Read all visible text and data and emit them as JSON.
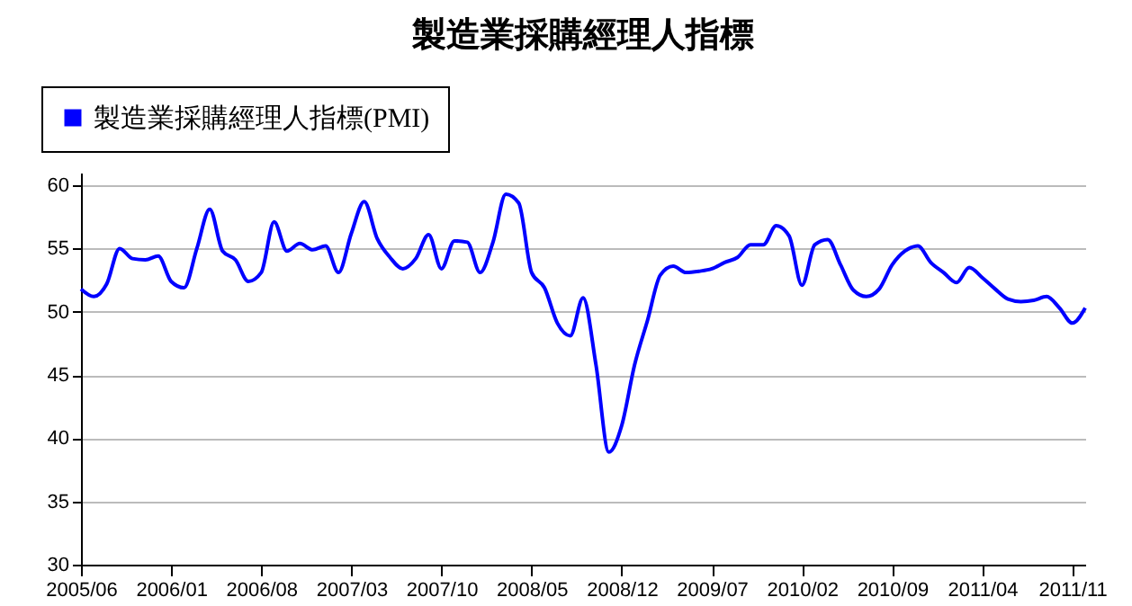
{
  "chart_data": {
    "type": "line",
    "title": "製造業採購經理人指標",
    "categories": [
      "2005/06",
      null,
      null,
      null,
      null,
      null,
      null,
      "2006/01",
      null,
      null,
      null,
      null,
      null,
      null,
      "2006/08",
      null,
      null,
      null,
      null,
      null,
      null,
      "2007/03",
      null,
      null,
      null,
      null,
      null,
      null,
      "2007/10",
      null,
      null,
      null,
      null,
      null,
      null,
      "2008/05",
      null,
      null,
      null,
      null,
      null,
      null,
      "2008/12",
      null,
      null,
      null,
      null,
      null,
      null,
      "2009/07",
      null,
      null,
      null,
      null,
      null,
      null,
      "2010/02",
      null,
      null,
      null,
      null,
      null,
      null,
      "2010/09",
      null,
      null,
      null,
      null,
      null,
      null,
      "2011/04",
      null,
      null,
      null,
      null,
      null,
      null,
      "2011/11",
      null
    ],
    "series": [
      {
        "name": "製造業採購經理人指標(PMI)",
        "color": "#0000ff",
        "values": [
          51.8,
          51.2,
          52.2,
          55.0,
          54.2,
          54.1,
          54.4,
          52.4,
          51.9,
          55.0,
          58.1,
          54.8,
          54.1,
          52.4,
          53.1,
          57.1,
          54.8,
          55.4,
          54.9,
          55.2,
          53.1,
          56.2,
          58.7,
          55.8,
          54.3,
          53.4,
          54.2,
          56.1,
          53.4,
          55.6,
          55.5,
          53.1,
          55.5,
          59.3,
          58.6,
          53.1,
          51.9,
          49.1,
          48.1,
          51.1,
          45.8,
          38.9,
          41.0,
          45.8,
          49.3,
          52.9,
          53.6,
          53.1,
          53.2,
          53.4,
          53.9,
          54.3,
          55.3,
          55.3,
          56.8,
          56.0,
          52.1,
          55.3,
          55.7,
          53.7,
          51.7,
          51.2,
          51.8,
          53.7,
          54.8,
          55.2,
          53.9,
          53.1,
          52.3,
          53.5,
          52.7,
          51.8,
          51.0,
          50.8,
          50.9,
          51.2,
          50.3,
          49.1,
          50.3
        ]
      }
    ],
    "ylim": [
      30,
      61
    ],
    "yticks": [
      30,
      35,
      40,
      45,
      50,
      55,
      60
    ],
    "grid": "y",
    "legend": "top left",
    "marker": "none",
    "line_style": "solid"
  }
}
